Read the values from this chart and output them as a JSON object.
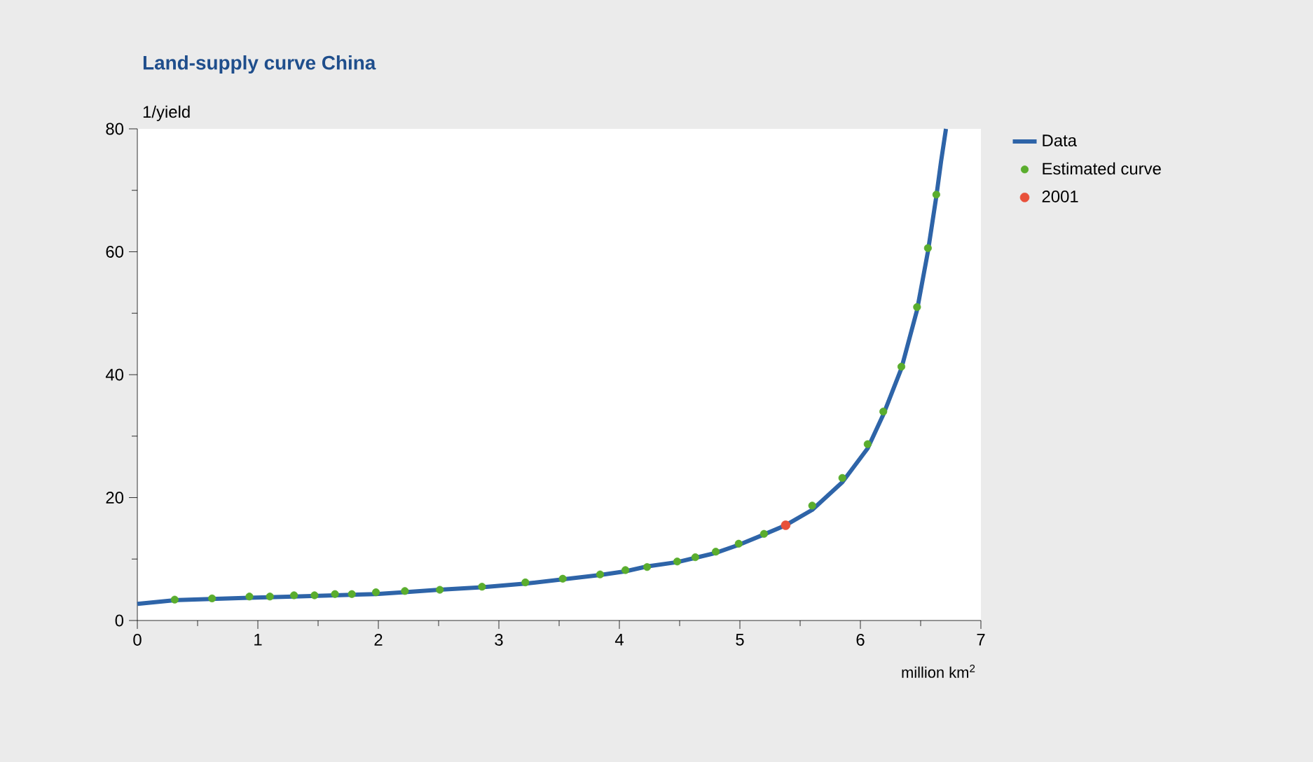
{
  "chart_data": {
    "type": "scatter",
    "title": "Land-supply curve China",
    "xlabel": "million km$^{2}$",
    "ylabel": "1/yield",
    "xlim": [
      0,
      7
    ],
    "ylim": [
      0,
      80
    ],
    "xticks": [
      0,
      {
        "value": 0.5,
        "label": null
      },
      1,
      {
        "value": 1.5,
        "label": null
      },
      2,
      {
        "value": 2.5,
        "label": null
      },
      3,
      {
        "value": 3.5,
        "label": null
      },
      4,
      {
        "value": 4.5,
        "label": null
      },
      5,
      {
        "value": 5.5,
        "label": null
      },
      6,
      {
        "value": 6.5,
        "label": null
      },
      7
    ],
    "yticks": [
      0,
      {
        "value": 10,
        "label": null
      },
      20,
      {
        "value": 30,
        "label": null
      },
      40,
      {
        "value": 50,
        "label": null
      },
      60,
      {
        "value": 70,
        "label": null
      },
      80
    ],
    "grid": false,
    "legend": "right",
    "series": [
      {
        "name": "Data",
        "type": "line",
        "color": "#2e64a8",
        "marker": "none",
        "x": [
          0,
          0.31,
          0.62,
          0.93,
          1.3,
          1.64,
          1.98,
          2.22,
          2.51,
          2.86,
          3.22,
          3.53,
          3.84,
          4.05,
          4.23,
          4.48,
          4.63,
          4.8,
          4.99,
          5.2,
          5.38,
          5.6,
          5.85,
          6.06,
          6.19,
          6.34,
          6.47,
          6.56,
          6.63,
          6.67,
          6.71
        ],
        "values": [
          2.7,
          3.3,
          3.5,
          3.7,
          3.9,
          4.1,
          4.3,
          4.6,
          5.0,
          5.4,
          6.0,
          6.7,
          7.4,
          8.0,
          8.8,
          9.5,
          10.2,
          11.0,
          12.3,
          14.0,
          15.5,
          18.0,
          22.5,
          28.0,
          33.5,
          41.0,
          50.5,
          60.0,
          69.0,
          74.8,
          80
        ]
      },
      {
        "name": "Estimated curve",
        "color": "#5aad2d",
        "marker": "circle",
        "x": [
          0.31,
          0.62,
          0.93,
          1.1,
          1.3,
          1.47,
          1.64,
          1.78,
          1.98,
          2.22,
          2.51,
          2.86,
          3.22,
          3.53,
          3.84,
          4.05,
          4.23,
          4.48,
          4.63,
          4.8,
          4.99,
          5.2,
          5.6,
          5.85,
          6.06,
          6.19,
          6.34,
          6.47,
          6.56,
          6.63
        ],
        "values": [
          3.4,
          3.6,
          3.9,
          3.9,
          4.1,
          4.1,
          4.3,
          4.3,
          4.6,
          4.8,
          5.0,
          5.5,
          6.2,
          6.8,
          7.5,
          8.2,
          8.7,
          9.6,
          10.3,
          11.2,
          12.5,
          14.1,
          18.7,
          23.2,
          28.7,
          34,
          41.3,
          51,
          60.6,
          69.3
        ]
      },
      {
        "name": "2001",
        "color": "#e8503a",
        "marker": "circle",
        "x": [
          5.38
        ],
        "values": [
          15.5
        ]
      }
    ]
  }
}
